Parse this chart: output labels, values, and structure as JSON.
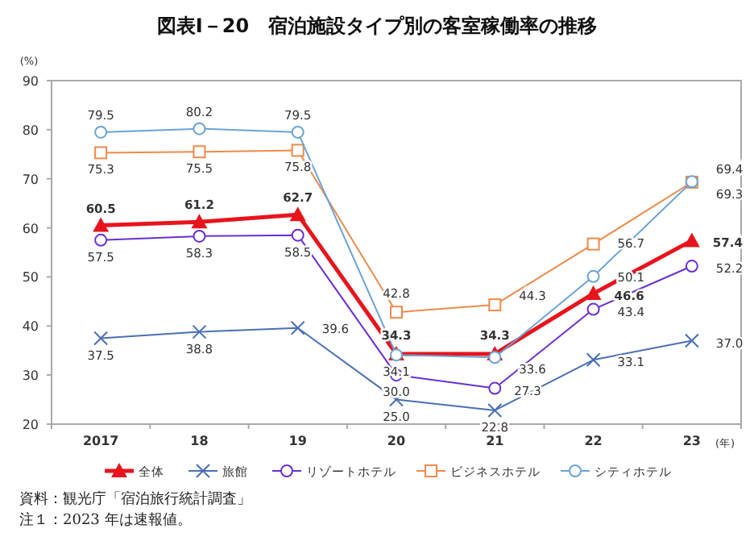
{
  "chart_data": {
    "type": "line",
    "title": "図表Ⅰ－20　宿泊施設タイプ別の客室稼働率の推移",
    "ylabel": "(%)",
    "xlabel": "(年)",
    "categories": [
      "2017",
      "18",
      "19",
      "20",
      "21",
      "22",
      "23"
    ],
    "ylim": [
      20,
      90
    ],
    "yticks": [
      20,
      30,
      40,
      50,
      60,
      70,
      80,
      90
    ],
    "grid": false,
    "legend": "bottom",
    "series": [
      {
        "name": "全体",
        "color": "#e8141c",
        "marker": "triangle",
        "values": [
          60.5,
          61.2,
          62.7,
          34.3,
          34.3,
          46.6,
          57.4
        ],
        "value_labels": [
          "60.5",
          "61.2",
          "62.7",
          "34.3",
          "34.3",
          "46.6",
          "57.4"
        ]
      },
      {
        "name": "旅館",
        "color": "#4a6fb5",
        "marker": "cross",
        "values": [
          37.5,
          38.8,
          39.6,
          25.0,
          22.8,
          33.1,
          37.0
        ],
        "value_labels": [
          "37.5",
          "38.8",
          "39.6",
          "25.0",
          "22.8",
          "33.1",
          "37.0"
        ]
      },
      {
        "name": "リゾートホテル",
        "color": "#6a2fd6",
        "marker": "circle",
        "values": [
          57.5,
          58.3,
          58.5,
          30.0,
          27.3,
          43.4,
          52.2
        ],
        "value_labels": [
          "57.5",
          "58.3",
          "58.5",
          "30.0",
          "27.3",
          "43.4",
          "52.2"
        ]
      },
      {
        "name": "ビジネスホテル",
        "color": "#ef8a4a",
        "marker": "square",
        "values": [
          75.3,
          75.5,
          75.8,
          42.8,
          44.3,
          56.7,
          69.3
        ],
        "value_labels": [
          "75.3",
          "75.5",
          "75.8",
          "42.8",
          "44.3",
          "56.7",
          "69.3"
        ]
      },
      {
        "name": "シティホテル",
        "color": "#6aa3d8",
        "marker": "circle",
        "values": [
          79.5,
          80.2,
          79.5,
          34.1,
          33.6,
          50.1,
          69.4
        ],
        "value_labels": [
          "79.5",
          "80.2",
          "79.5",
          "34.1",
          "33.6",
          "50.1",
          "69.4"
        ]
      }
    ],
    "annotations": [
      "資料：観光庁「宿泊旅行統計調査」",
      "注１：2023 年は速報値。"
    ]
  }
}
